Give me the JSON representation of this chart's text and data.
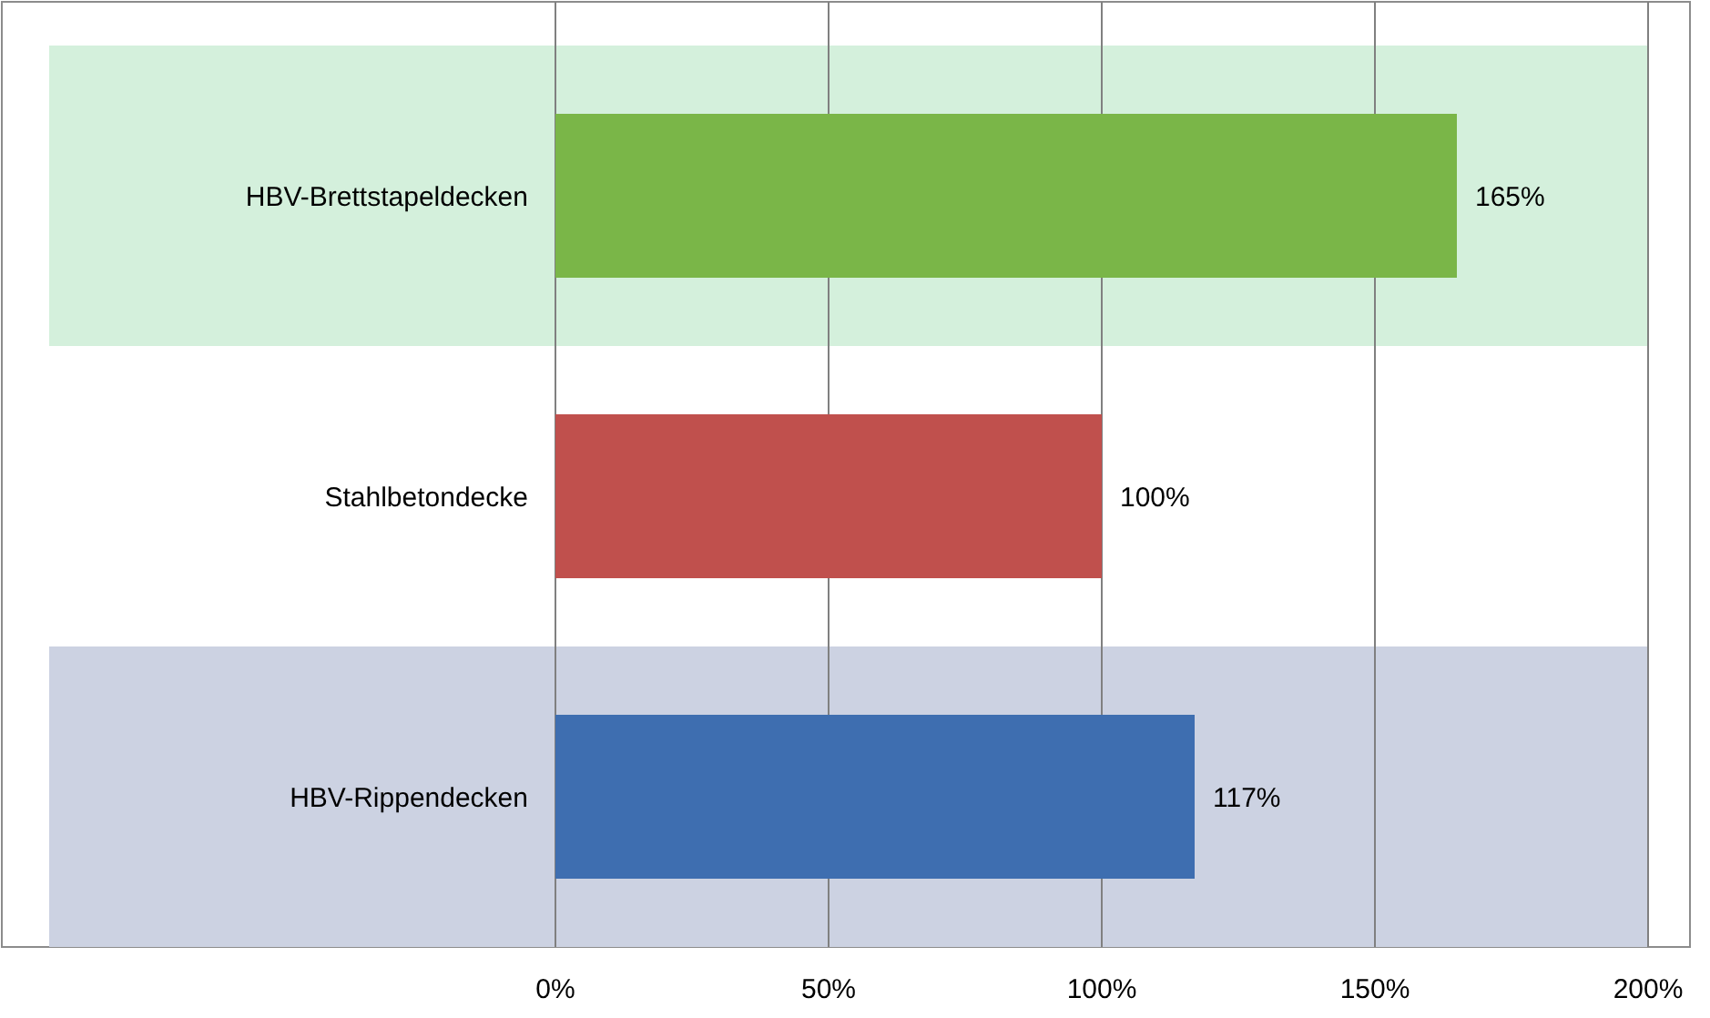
{
  "chart_data": {
    "type": "bar",
    "orientation": "horizontal",
    "categories": [
      "HBV-Brettstapeldecken",
      "Stahlbetondecke",
      "HBV-Rippendecken"
    ],
    "values": [
      165,
      100,
      117
    ],
    "colors": [
      "#7ab648",
      "#c0504d",
      "#3e6eb0"
    ],
    "value_labels": [
      "165%",
      "100%",
      "117%"
    ],
    "xlim": [
      0,
      200
    ],
    "xticks": [
      {
        "value": 0,
        "label": "0%"
      },
      {
        "value": 50,
        "label": "50%"
      },
      {
        "value": 100,
        "label": "100%"
      },
      {
        "value": 150,
        "label": "150%"
      },
      {
        "value": 200,
        "label": "200%"
      }
    ],
    "grid": "x",
    "bands": [
      {
        "axis": "y",
        "from": "HBV-Brettstapeldecken",
        "to": "HBV-Brettstapeldecken",
        "color": "#d4f0dc"
      },
      {
        "axis": "y",
        "from": "HBV-Rippendecken",
        "to": "HBV-Rippendecken",
        "color": "#ccd2e2"
      }
    ]
  }
}
